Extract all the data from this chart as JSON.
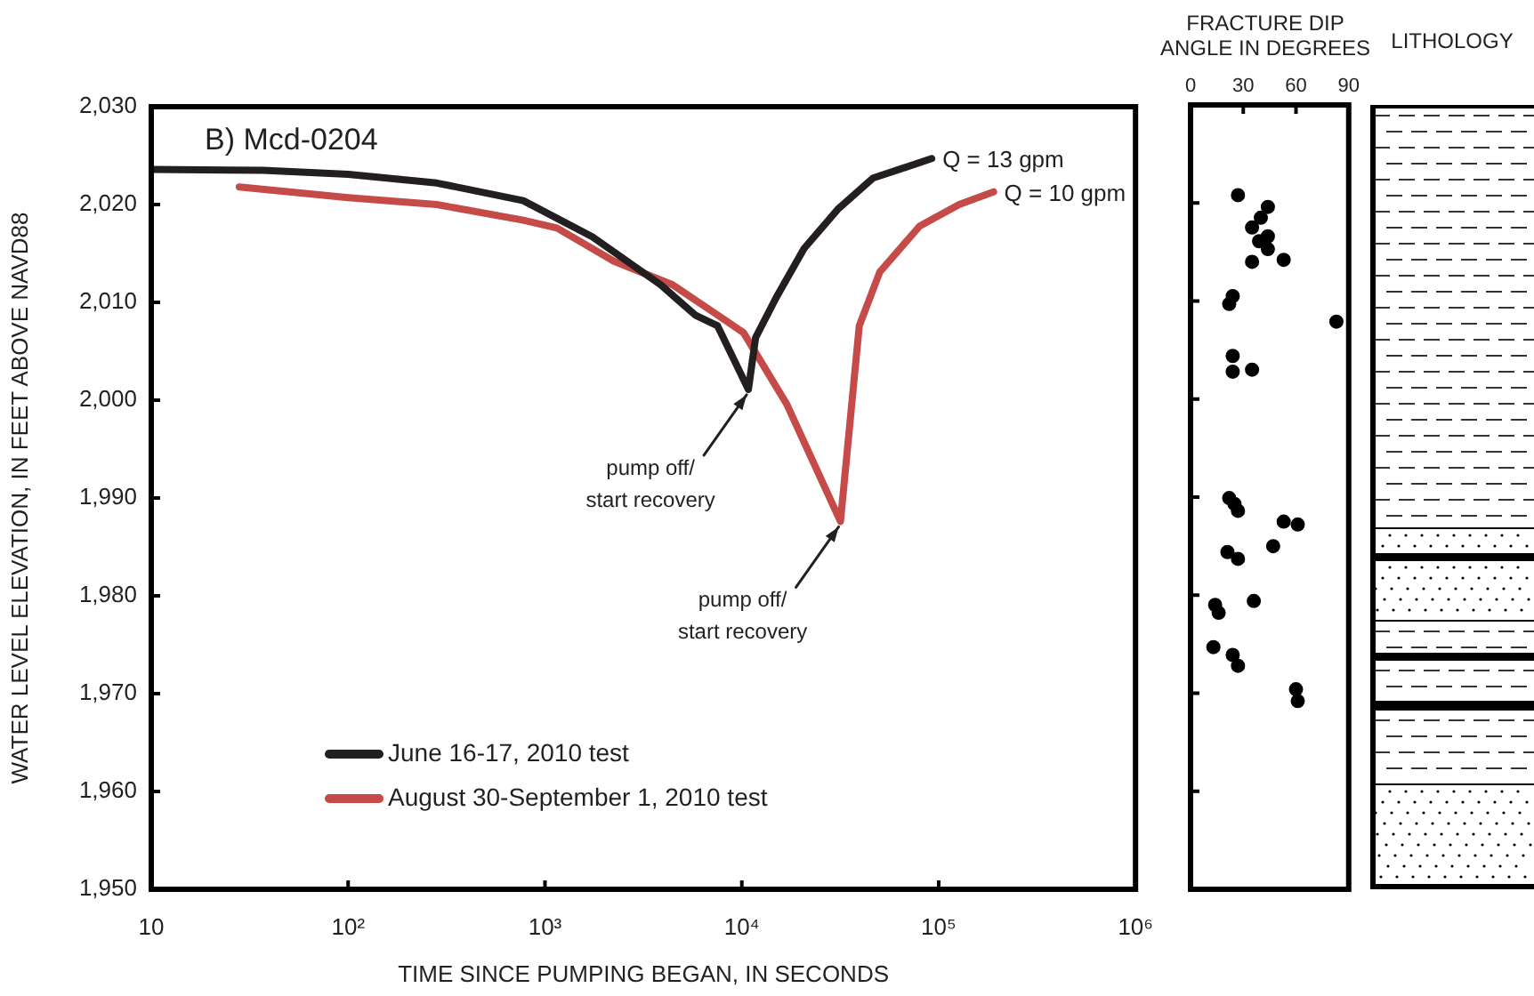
{
  "chart_data": [
    {
      "type": "line",
      "title": "B) Mcd-0204",
      "xlabel": "TIME SINCE PUMPING BEGAN, IN SECONDS",
      "ylabel": "WATER LEVEL ELEVATION, IN FEET ABOVE NAVD88",
      "log": "x",
      "grid": false,
      "legend": "bottom left",
      "xlim": [
        10,
        1000000
      ],
      "xticks": [
        10,
        {
          "value": 100,
          "label": "10²"
        },
        {
          "value": 1000,
          "label": "10³"
        },
        {
          "value": 10000,
          "label": "10⁴"
        },
        {
          "value": 100000,
          "label": "10⁵"
        },
        {
          "value": 1000000,
          "label": "10⁶"
        }
      ],
      "ylim": [
        1950,
        2030
      ],
      "yticks": [
        {
          "value": 1950,
          "label": "1,950"
        },
        {
          "value": 1960,
          "label": "1,960"
        },
        {
          "value": 1970,
          "label": "1,970"
        },
        {
          "value": 1980,
          "label": "1,980"
        },
        {
          "value": 1990,
          "label": "1,990"
        },
        {
          "value": 2000,
          "label": "2,000"
        },
        {
          "value": 2010,
          "label": "2,010"
        },
        {
          "value": 2020,
          "label": "2,020"
        },
        {
          "value": 2030,
          "label": "2,030"
        }
      ],
      "series": [
        {
          "name": "June 16-17, 2010 test",
          "color": "#231f20",
          "x": [
            10,
            37,
            100,
            282,
            776,
            1740,
            3870,
            5800,
            7530,
            10800,
            11750,
            14960,
            20700,
            31000,
            46400,
            92200
          ],
          "values": [
            2023.6,
            2023.5,
            2023.1,
            2022.2,
            2020.4,
            2016.7,
            2011.8,
            2008.7,
            2007.6,
            2001.1,
            2006.4,
            2010.5,
            2015.5,
            2019.6,
            2022.7,
            2024.7
          ]
        },
        {
          "name": "August 30-September 1, 2010 test",
          "color": "#c44b47",
          "x": [
            28,
            100,
            282,
            776,
            1150,
            2240,
            4450,
            7530,
            10200,
            16900,
            31700,
            39500,
            50200,
            80100,
            127000,
            190000
          ],
          "values": [
            2021.8,
            2020.7,
            2020.0,
            2018.4,
            2017.6,
            2014.2,
            2011.8,
            2008.7,
            2006.9,
            1999.6,
            1987.6,
            2007.6,
            2013.1,
            2017.8,
            2020.0,
            2021.3
          ]
        }
      ],
      "annotations": [
        {
          "text": "Q = 13 gpm",
          "x": 92200,
          "y": 2024.7
        },
        {
          "text": "Q = 10 gpm",
          "x": 190000,
          "y": 2021.3
        },
        {
          "text": "pump off/\nstart recovery",
          "x": 10800,
          "y": 2001.1
        },
        {
          "text": "pump off/\nstart recovery",
          "x": 31700,
          "y": 1987.6
        }
      ]
    },
    {
      "type": "scatter",
      "xlabel": "FRACTURE DIP ANGLE IN DEGREES",
      "grid": false,
      "tick_labels": "x",
      "marker": "circle",
      "xlim": [
        0,
        90
      ],
      "xticks": [
        0,
        30,
        60,
        90
      ],
      "ylim": [
        1950,
        2030
      ],
      "yticks": [
        {
          "value": 1960,
          "label": null
        },
        {
          "value": 1970,
          "label": null
        },
        {
          "value": 1980,
          "label": null
        },
        {
          "value": 1990,
          "label": null
        },
        {
          "value": 2000,
          "label": null
        },
        {
          "value": 2010,
          "label": null
        },
        {
          "value": 2020,
          "label": null
        }
      ],
      "series": [
        {
          "color": "#000000",
          "x": [
            27,
            44,
            40,
            35,
            44,
            39,
            44,
            35,
            53,
            24,
            22,
            83,
            24,
            24,
            35,
            22,
            25,
            27,
            53,
            61,
            47,
            21,
            27,
            36,
            14,
            16,
            13,
            24,
            27,
            60,
            61
          ],
          "values": [
            2020.8,
            2019.6,
            2018.5,
            2017.5,
            2016.6,
            2016.1,
            2015.3,
            2014.0,
            2014.2,
            2010.5,
            2009.7,
            2007.9,
            2004.4,
            2002.8,
            2003.0,
            1989.9,
            1989.3,
            1988.6,
            1987.5,
            1987.2,
            1985.0,
            1984.4,
            1983.7,
            1979.4,
            1979.0,
            1978.2,
            1974.7,
            1973.9,
            1972.8,
            1970.4,
            1969.2
          ]
        }
      ]
    },
    {
      "type": "other",
      "title": "LITHOLOGY"
    }
  ]
}
